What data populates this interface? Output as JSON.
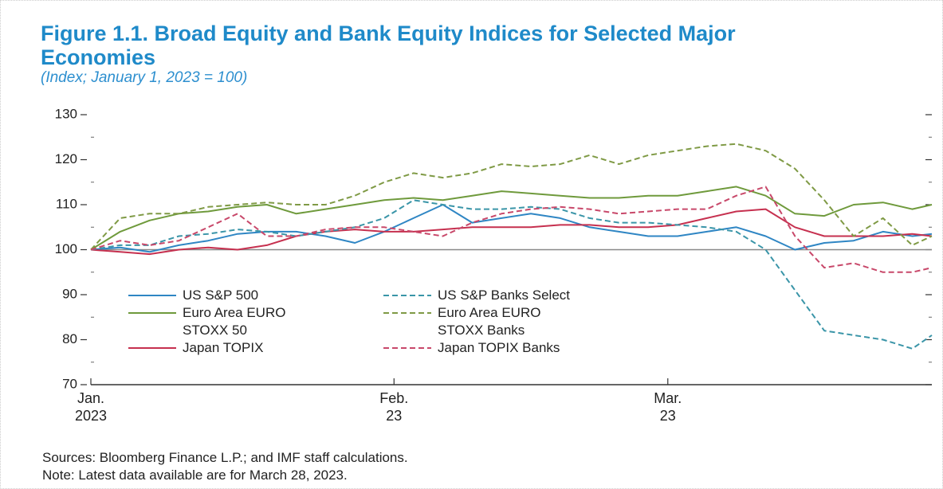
{
  "chart_data": {
    "type": "line",
    "title": "Figure 1.1.  Broad Equity and Bank Equity Indices for Selected Major Economies",
    "subtitle": "(Index; January 1, 2023 = 100)",
    "x": [
      0,
      3,
      6,
      9,
      12,
      15,
      18,
      21,
      24,
      27,
      30,
      33,
      36,
      39,
      42,
      45,
      48,
      51,
      54,
      57,
      60,
      63,
      66,
      69,
      72,
      75,
      78,
      81,
      84,
      86
    ],
    "xlim": [
      0,
      86
    ],
    "xticks": [
      {
        "value": 0,
        "label": "Jan.\n2023"
      },
      {
        "value": 31,
        "label": "Feb.\n23"
      },
      {
        "value": 59,
        "label": "Mar.\n23"
      }
    ],
    "ylim": [
      70,
      130
    ],
    "yticks": [
      70,
      80,
      90,
      100,
      110,
      120,
      130
    ],
    "minor_yticks": [
      75,
      85,
      95,
      105,
      115,
      125
    ],
    "reference_line": 100,
    "series": [
      {
        "name": "US S&P 500",
        "color": "#2f86c4",
        "dash": false,
        "values": [
          100,
          100.5,
          99.5,
          101,
          102,
          103.5,
          104,
          104,
          103,
          101.5,
          104,
          107,
          110,
          106,
          107,
          108,
          107,
          105,
          104,
          103,
          103,
          104,
          105,
          103,
          100,
          101.5,
          102,
          104,
          103,
          103.5
        ]
      },
      {
        "name": "Euro Area EURO\nSTOXX 50",
        "color": "#6f9a3c",
        "dash": false,
        "values": [
          100,
          104,
          106.5,
          108,
          108.5,
          109.5,
          110,
          108,
          109,
          110,
          111,
          111.5,
          111,
          112,
          113,
          112.5,
          112,
          111.5,
          111.5,
          112,
          112,
          113,
          114,
          112,
          108,
          107.5,
          110,
          110.5,
          109,
          110
        ]
      },
      {
        "name": "Japan TOPIX",
        "color": "#c6304f",
        "dash": false,
        "values": [
          100,
          99.5,
          99,
          100,
          100.5,
          100,
          101,
          103,
          104,
          104.5,
          104,
          104,
          104.5,
          105,
          105,
          105,
          105.5,
          105.5,
          105,
          105,
          105.5,
          107,
          108.5,
          109,
          105,
          103,
          103,
          103,
          103.5,
          103
        ]
      },
      {
        "name": "US S&P Banks Select",
        "color": "#3a95a8",
        "dash": true,
        "values": [
          100,
          101,
          101,
          103,
          103.5,
          104.5,
          104,
          103,
          104,
          105,
          107,
          111,
          110,
          109,
          109,
          109.5,
          109,
          107,
          106,
          106,
          105.5,
          105,
          104,
          100,
          91,
          82,
          81,
          80,
          78,
          81
        ]
      },
      {
        "name": "Euro Area EURO\nSTOXX Banks",
        "color": "#7f9a45",
        "dash": true,
        "values": [
          100,
          107,
          108,
          108,
          109.5,
          110,
          110.5,
          110,
          110,
          112,
          115,
          117,
          116,
          117,
          119,
          118.5,
          119,
          121,
          119,
          121,
          122,
          123,
          123.5,
          122,
          118,
          111,
          103,
          107,
          101,
          103
        ]
      },
      {
        "name": "Japan TOPIX Banks",
        "color": "#c8486a",
        "dash": true,
        "values": [
          100,
          102,
          101,
          102,
          105,
          108,
          103,
          103,
          104.5,
          105,
          105,
          104,
          103,
          106,
          108,
          109,
          109.5,
          109,
          108,
          108.5,
          109,
          109,
          112,
          114,
          103,
          96,
          97,
          95,
          95,
          96
        ]
      }
    ],
    "sources": "Sources: Bloomberg Finance L.P.; and IMF staff calculations.",
    "note": "Note: Latest data available are for March 28, 2023."
  }
}
